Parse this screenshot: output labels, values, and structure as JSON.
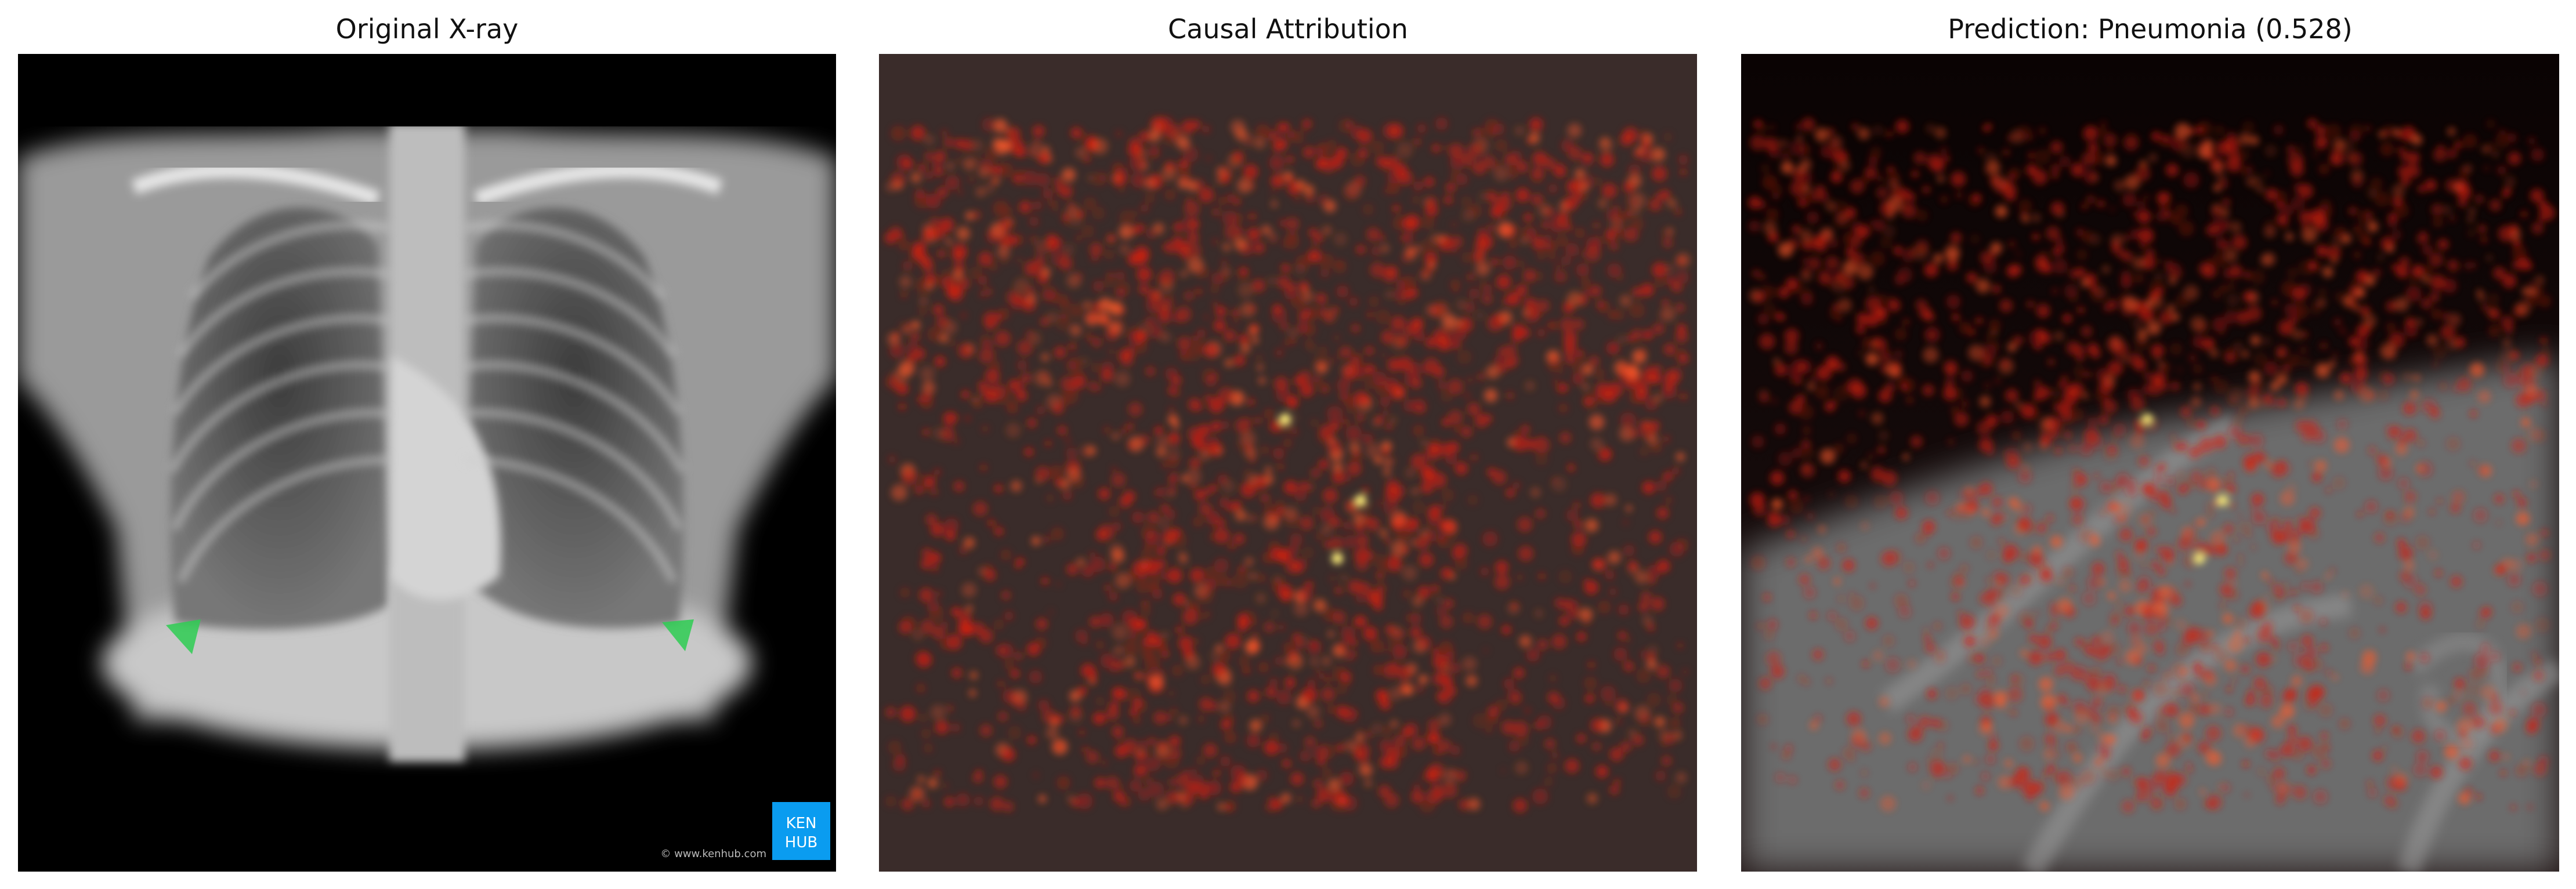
{
  "panels": [
    {
      "title": "Original X-ray"
    },
    {
      "title": "Causal Attribution"
    },
    {
      "title": "Prediction: Pneumonia (0.528)"
    }
  ],
  "watermark": {
    "logo_line1": "KEN",
    "logo_line2": "HUB",
    "credit": "© www.kenhub.com",
    "logo_color": "#0a9cf0"
  },
  "colors": {
    "heat_hot": "#ff3b1f",
    "heat_peak": "#fff07a",
    "highlight_green": "#2ecc52"
  }
}
